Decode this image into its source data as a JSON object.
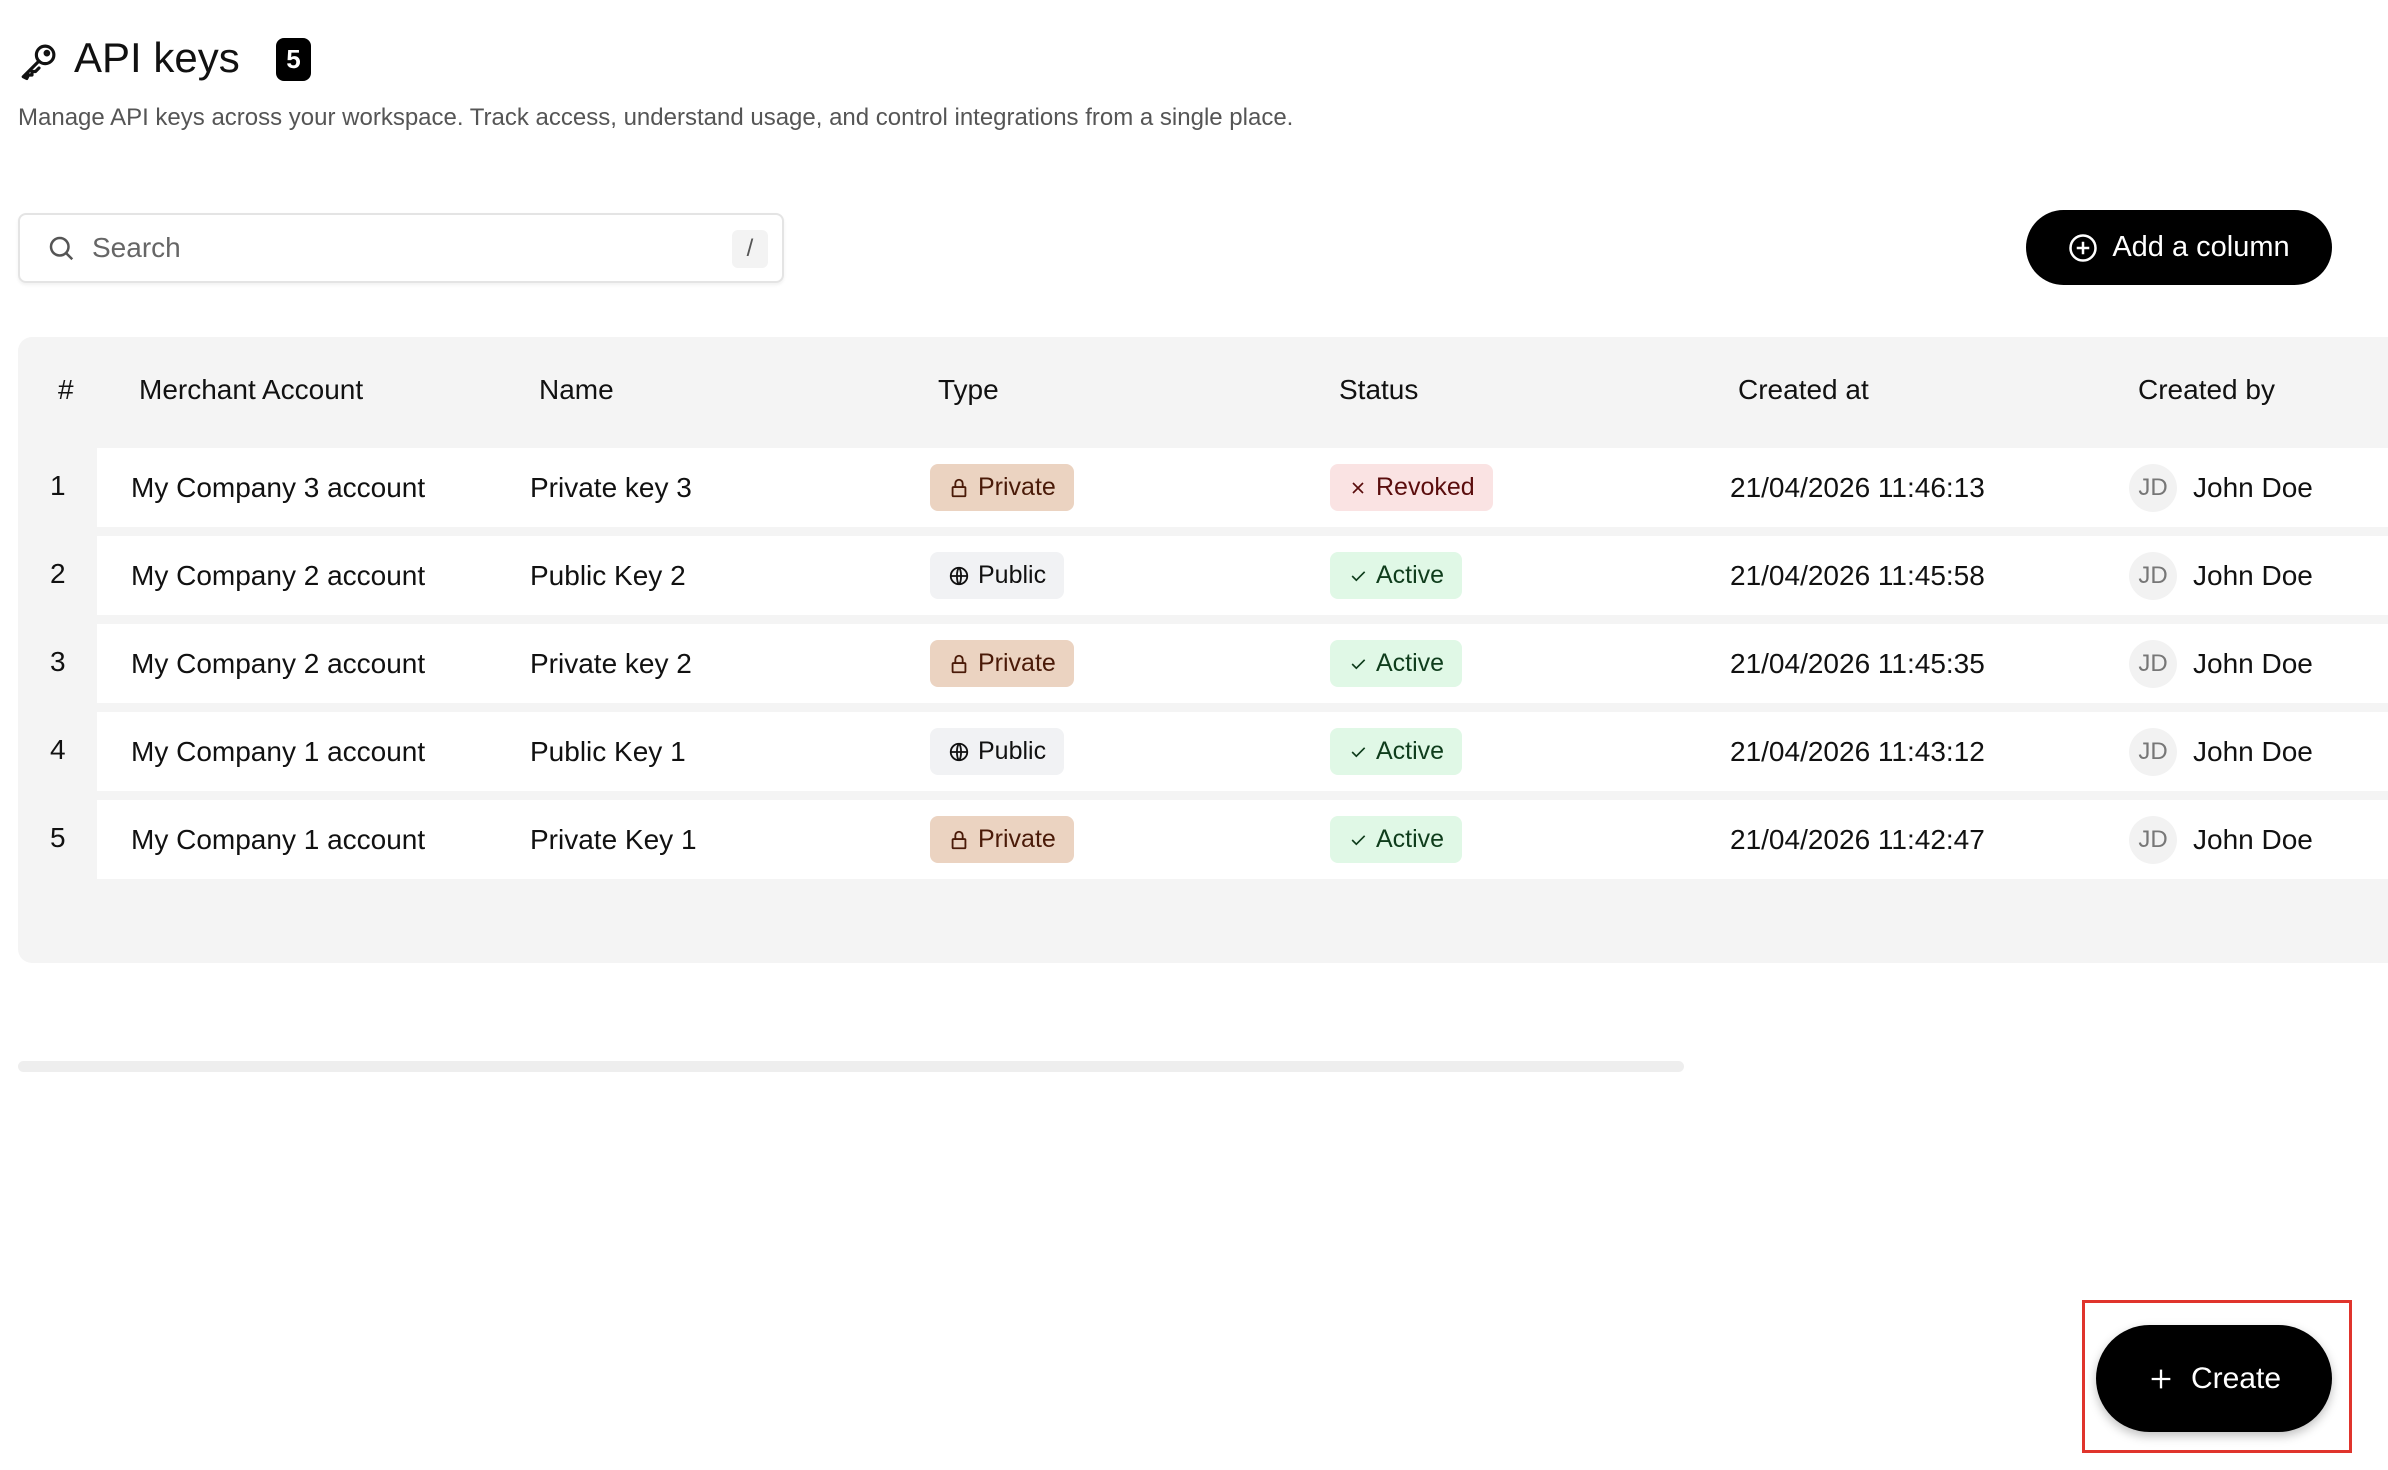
{
  "header": {
    "title": "API keys",
    "count": "5",
    "subtitle": "Manage API keys across your workspace. Track access, understand usage, and control integrations from a single place."
  },
  "search": {
    "placeholder": "Search",
    "shortcut": "/"
  },
  "toolbar": {
    "add_column": "Add a column",
    "create": "Create"
  },
  "table": {
    "columns": [
      "#",
      "Merchant Account",
      "Name",
      "Type",
      "Status",
      "Created at",
      "Created by"
    ],
    "rows": [
      {
        "index": "1",
        "merchant": "My Company 3 account",
        "name": "Private key 3",
        "type": "Private",
        "status": "Revoked",
        "created_at": "21/04/2026 11:46:13",
        "initials": "JD",
        "created_by": "John Doe"
      },
      {
        "index": "2",
        "merchant": "My Company 2 account",
        "name": "Public Key 2",
        "type": "Public",
        "status": "Active",
        "created_at": "21/04/2026 11:45:58",
        "initials": "JD",
        "created_by": "John Doe"
      },
      {
        "index": "3",
        "merchant": "My Company 2 account",
        "name": "Private key 2",
        "type": "Private",
        "status": "Active",
        "created_at": "21/04/2026 11:45:35",
        "initials": "JD",
        "created_by": "John Doe"
      },
      {
        "index": "4",
        "merchant": "My Company 1 account",
        "name": "Public Key 1",
        "type": "Public",
        "status": "Active",
        "created_at": "21/04/2026 11:43:12",
        "initials": "JD",
        "created_by": "John Doe"
      },
      {
        "index": "5",
        "merchant": "My Company 1 account",
        "name": "Private Key 1",
        "type": "Private",
        "status": "Active",
        "created_at": "21/04/2026 11:42:47",
        "initials": "JD",
        "created_by": "John Doe"
      }
    ]
  },
  "colors": {
    "private": "#ebd3c1",
    "public": "#f1f2f4",
    "revoked": "#fae3e3",
    "active": "#e0f8e6",
    "highlight": "#e0342c"
  }
}
